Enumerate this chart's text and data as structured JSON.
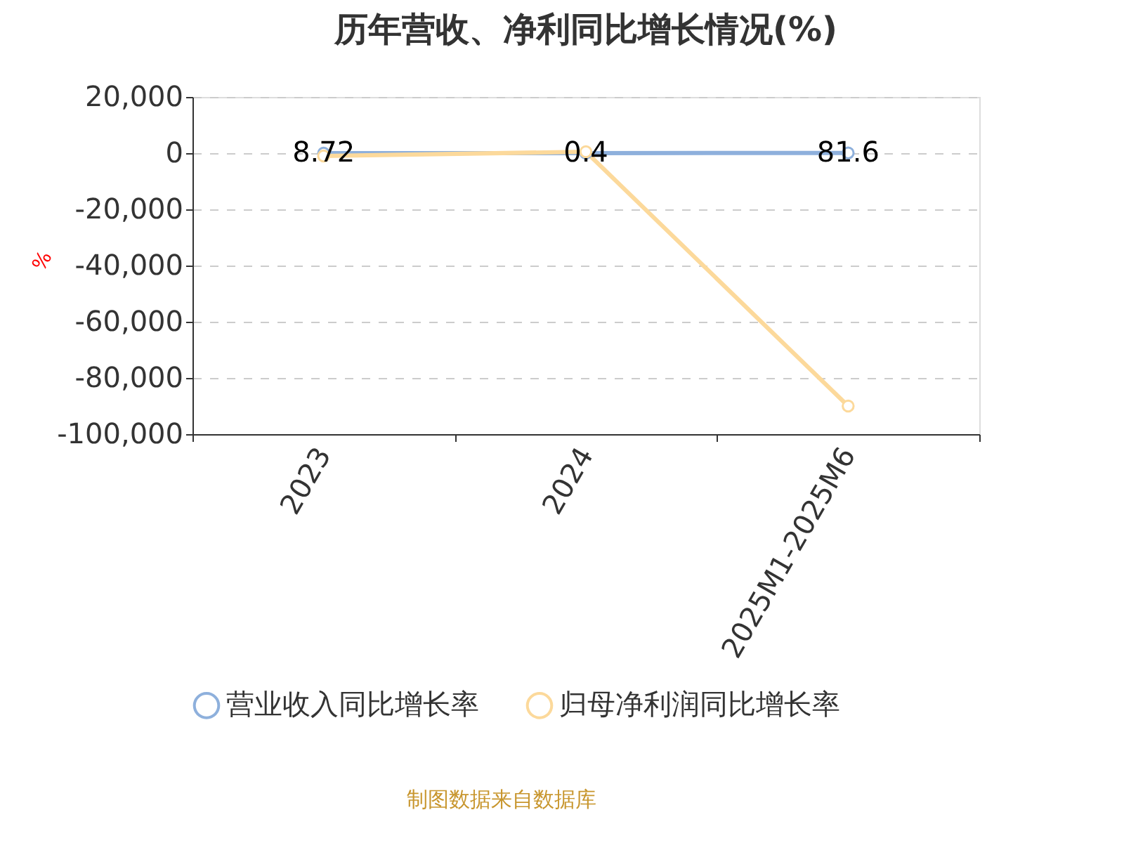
{
  "chart_data": {
    "type": "line",
    "title": "历年营收、净利同比增长情况(%)",
    "ylabel": "%",
    "categories": [
      "2023",
      "2024",
      "2025M1-2025M6"
    ],
    "series": [
      {
        "name": "营业收入同比增长率",
        "color": "#8eb0dc",
        "values": [
          8.72,
          0.4,
          81.6
        ],
        "value_labels": [
          "8.72",
          "0.4",
          "81.6"
        ]
      },
      {
        "name": "归母净利润同比增长率",
        "color": "#fcd99b",
        "values": [
          -1000,
          500,
          -90000
        ]
      }
    ],
    "ylim": [
      -100000,
      20000
    ],
    "yticks": [
      {
        "value": -100000,
        "label": "-100,000"
      },
      {
        "value": -80000,
        "label": "-80,000"
      },
      {
        "value": -60000,
        "label": "-60,000"
      },
      {
        "value": -40000,
        "label": "-40,000"
      },
      {
        "value": -20000,
        "label": "-20,000"
      },
      0,
      {
        "value": 20000,
        "label": "20,000"
      }
    ],
    "grid": "y",
    "legend": "bottom",
    "marker": "circle",
    "line_style": "solid",
    "annotations": [
      "制图数据来自数据库"
    ]
  }
}
